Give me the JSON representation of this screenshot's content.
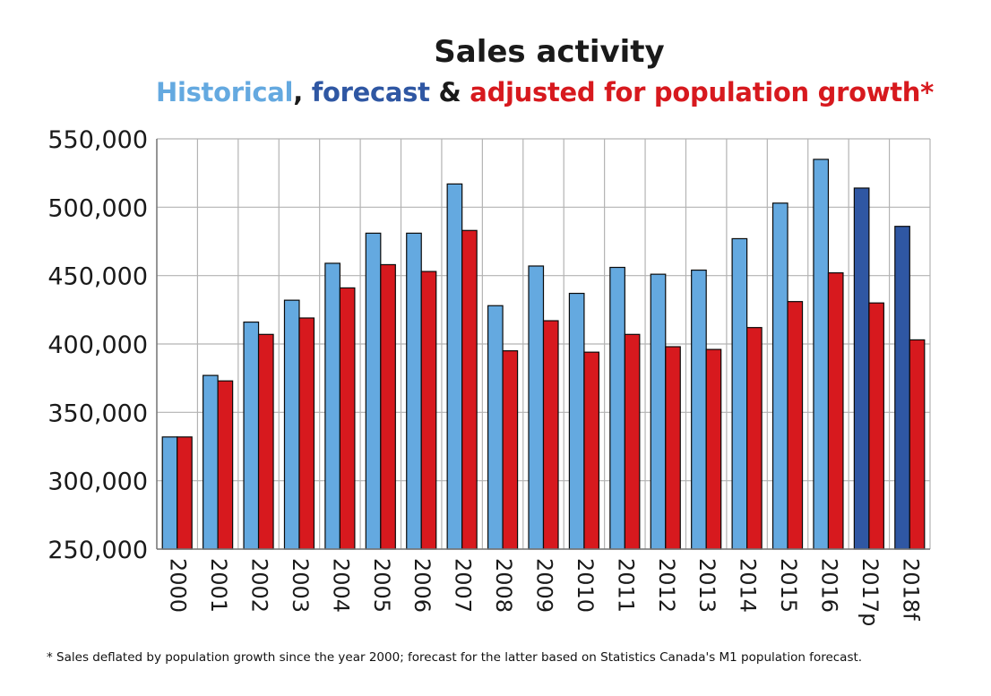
{
  "chart_data": {
    "type": "bar",
    "title": "Sales activity",
    "subtitle": {
      "historical": "Historical",
      "sep1": ", ",
      "forecast": "forecast",
      "sep2": " & ",
      "adjusted": "adjusted for population growth*"
    },
    "categories": [
      "2000",
      "2001",
      "2002",
      "2003",
      "2004",
      "2005",
      "2006",
      "2007",
      "2008",
      "2009",
      "2010",
      "2011",
      "2012",
      "2013",
      "2014",
      "2015",
      "2016",
      "2017p",
      "2018f"
    ],
    "series": [
      {
        "name": "Historical / forecast",
        "values": [
          332000,
          377000,
          416000,
          432000,
          459000,
          481000,
          481000,
          517000,
          428000,
          457000,
          437000,
          456000,
          451000,
          454000,
          477000,
          503000,
          535000,
          514000,
          486000
        ],
        "forecast_from_index": 17
      },
      {
        "name": "Adjusted for population growth",
        "values": [
          332000,
          373000,
          407000,
          419000,
          441000,
          458000,
          453000,
          483000,
          395000,
          417000,
          394000,
          407000,
          398000,
          396000,
          412000,
          431000,
          452000,
          430000,
          403000
        ]
      }
    ],
    "ylim": [
      250000,
      550000
    ],
    "yticks": [
      250000,
      300000,
      350000,
      400000,
      450000,
      500000,
      550000
    ],
    "ytick_labels": [
      "250,000",
      "300,000",
      "350,000",
      "400,000",
      "450,000",
      "500,000",
      "550,000"
    ],
    "grid": true,
    "colors": {
      "historical": "#64a9e0",
      "forecast": "#2f57a3",
      "adjusted": "#d7191e",
      "outline": "#0a0a0a",
      "grid": "#b3b3b3"
    },
    "footnote": "* Sales deflated by population growth since the year 2000; forecast for the latter based on Statistics Canada's M1 population forecast."
  }
}
